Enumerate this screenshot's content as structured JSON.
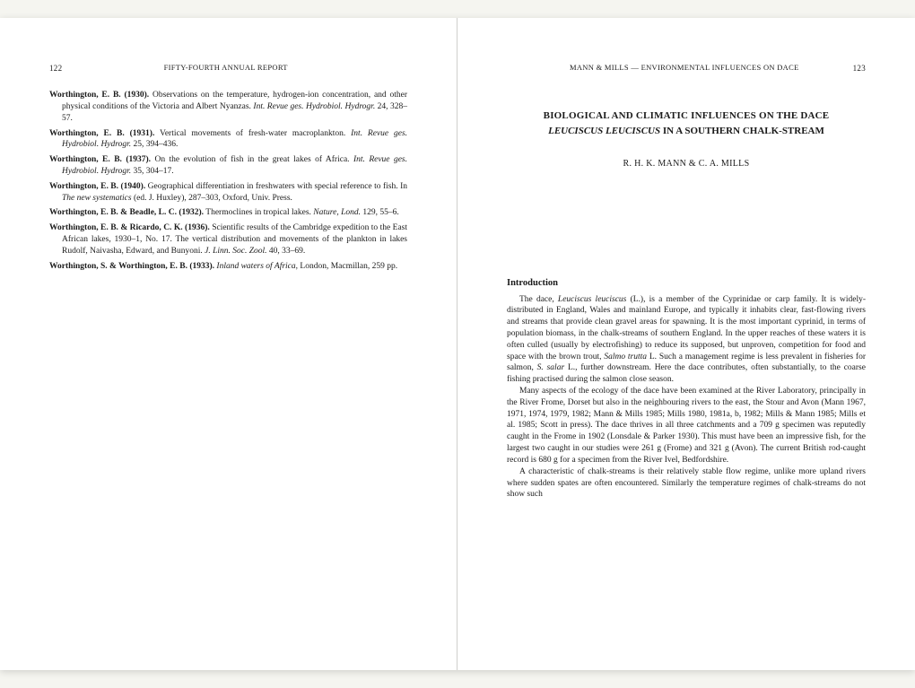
{
  "leftPage": {
    "pageNumber": "122",
    "runningHead": "FIFTY-FOURTH ANNUAL REPORT",
    "references": [
      {
        "author": "Worthington, E. B. (1930).",
        "rest": " Observations on the temperature, hydrogen-ion concentration, and other physical conditions of the Victoria and Albert Nyanzas. ",
        "ital": "Int. Revue ges. Hydrobiol. Hydrogr.",
        "tail": " 24, 328–57."
      },
      {
        "author": "Worthington, E. B. (1931).",
        "rest": " Vertical movements of fresh-water macroplankton. ",
        "ital": "Int. Revue ges. Hydrobiol. Hydrogr.",
        "tail": " 25, 394–436."
      },
      {
        "author": "Worthington, E. B. (1937).",
        "rest": " On the evolution of fish in the great lakes of Africa. ",
        "ital": "Int. Revue ges. Hydrobiol. Hydrogr.",
        "tail": " 35, 304–17."
      },
      {
        "author": "Worthington, E. B. (1940).",
        "rest": " Geographical differentiation in freshwaters with special reference to fish. In ",
        "ital": "The new systematics",
        "tail": " (ed. J. Huxley), 287–303, Oxford, Univ. Press."
      },
      {
        "author": "Worthington, E. B. & Beadle, L. C. (1932).",
        "rest": " Thermoclines in tropical lakes. ",
        "ital": "Nature, Lond.",
        "tail": " 129, 55–6."
      },
      {
        "author": "Worthington, E. B. & Ricardo, C. K. (1936).",
        "rest": " Scientific results of the Cambridge expedition to the East African lakes, 1930–1, No. 17. The vertical distribution and movements of the plankton in lakes Rudolf, Naivasha, Edward, and Bunyoni. ",
        "ital": "J. Linn. Soc. Zool.",
        "tail": " 40, 33–69."
      },
      {
        "author": "Worthington, S. & Worthington, E. B. (1933).",
        "rest": " ",
        "ital": "Inland waters of Africa,",
        "tail": " London, Macmillan, 259 pp."
      }
    ]
  },
  "rightPage": {
    "runningHead": "MANN & MILLS — ENVIRONMENTAL INFLUENCES ON DACE",
    "pageNumber": "123",
    "title": "BIOLOGICAL AND CLIMATIC INFLUENCES ON THE DACE",
    "subtitlePlain1": "",
    "subtitleItal": "LEUCISCUS LEUCISCUS",
    "subtitlePlain2": " IN A SOUTHERN CHALK-STREAM",
    "authors": "R. H. K. MANN & C. A. MILLS",
    "sectionHead": "Introduction",
    "para1_a": "The dace, ",
    "para1_ital": "Leuciscus leuciscus",
    "para1_b": " (L.), is a member of the Cyprinidae or carp family. It is widely-distributed in England, Wales and mainland Europe, and typically it inhabits clear, fast-flowing rivers and streams that provide clean gravel areas for spawning. It is the most important cyprinid, in terms of population biomass, in the chalk-streams of southern England. In the upper reaches of these waters it is often culled (usually by electrofishing) to reduce its supposed, but unproven, competition for food and space with the brown trout, ",
    "para1_ital2": "Salmo trutta",
    "para1_c": " L. Such a management regime is less prevalent in fisheries for salmon, ",
    "para1_ital3": "S. salar",
    "para1_d": " L., further downstream. Here the dace contributes, often substantially, to the coarse fishing practised during the salmon close season.",
    "para2": "Many aspects of the ecology of the dace have been examined at the River Laboratory, principally in the River Frome, Dorset but also in the neighbouring rivers to the east, the Stour and Avon (Mann 1967, 1971, 1974, 1979, 1982; Mann & Mills 1985; Mills 1980, 1981a, b, 1982; Mills & Mann 1985; Mills et al. 1985; Scott in press). The dace thrives in all three catchments and a 709 g specimen was reputedly caught in the Frome in 1902 (Lonsdale & Parker 1930). This must have been an impressive fish, for the largest two caught in our studies were 261 g (Frome) and 321 g (Avon). The current British rod-caught record is 680 g for a specimen from the River Ivel, Bedfordshire.",
    "para3": "A characteristic of chalk-streams is their relatively stable flow regime, unlike more upland rivers where sudden spates are often encountered. Similarly the temperature regimes of chalk-streams do not show such"
  }
}
